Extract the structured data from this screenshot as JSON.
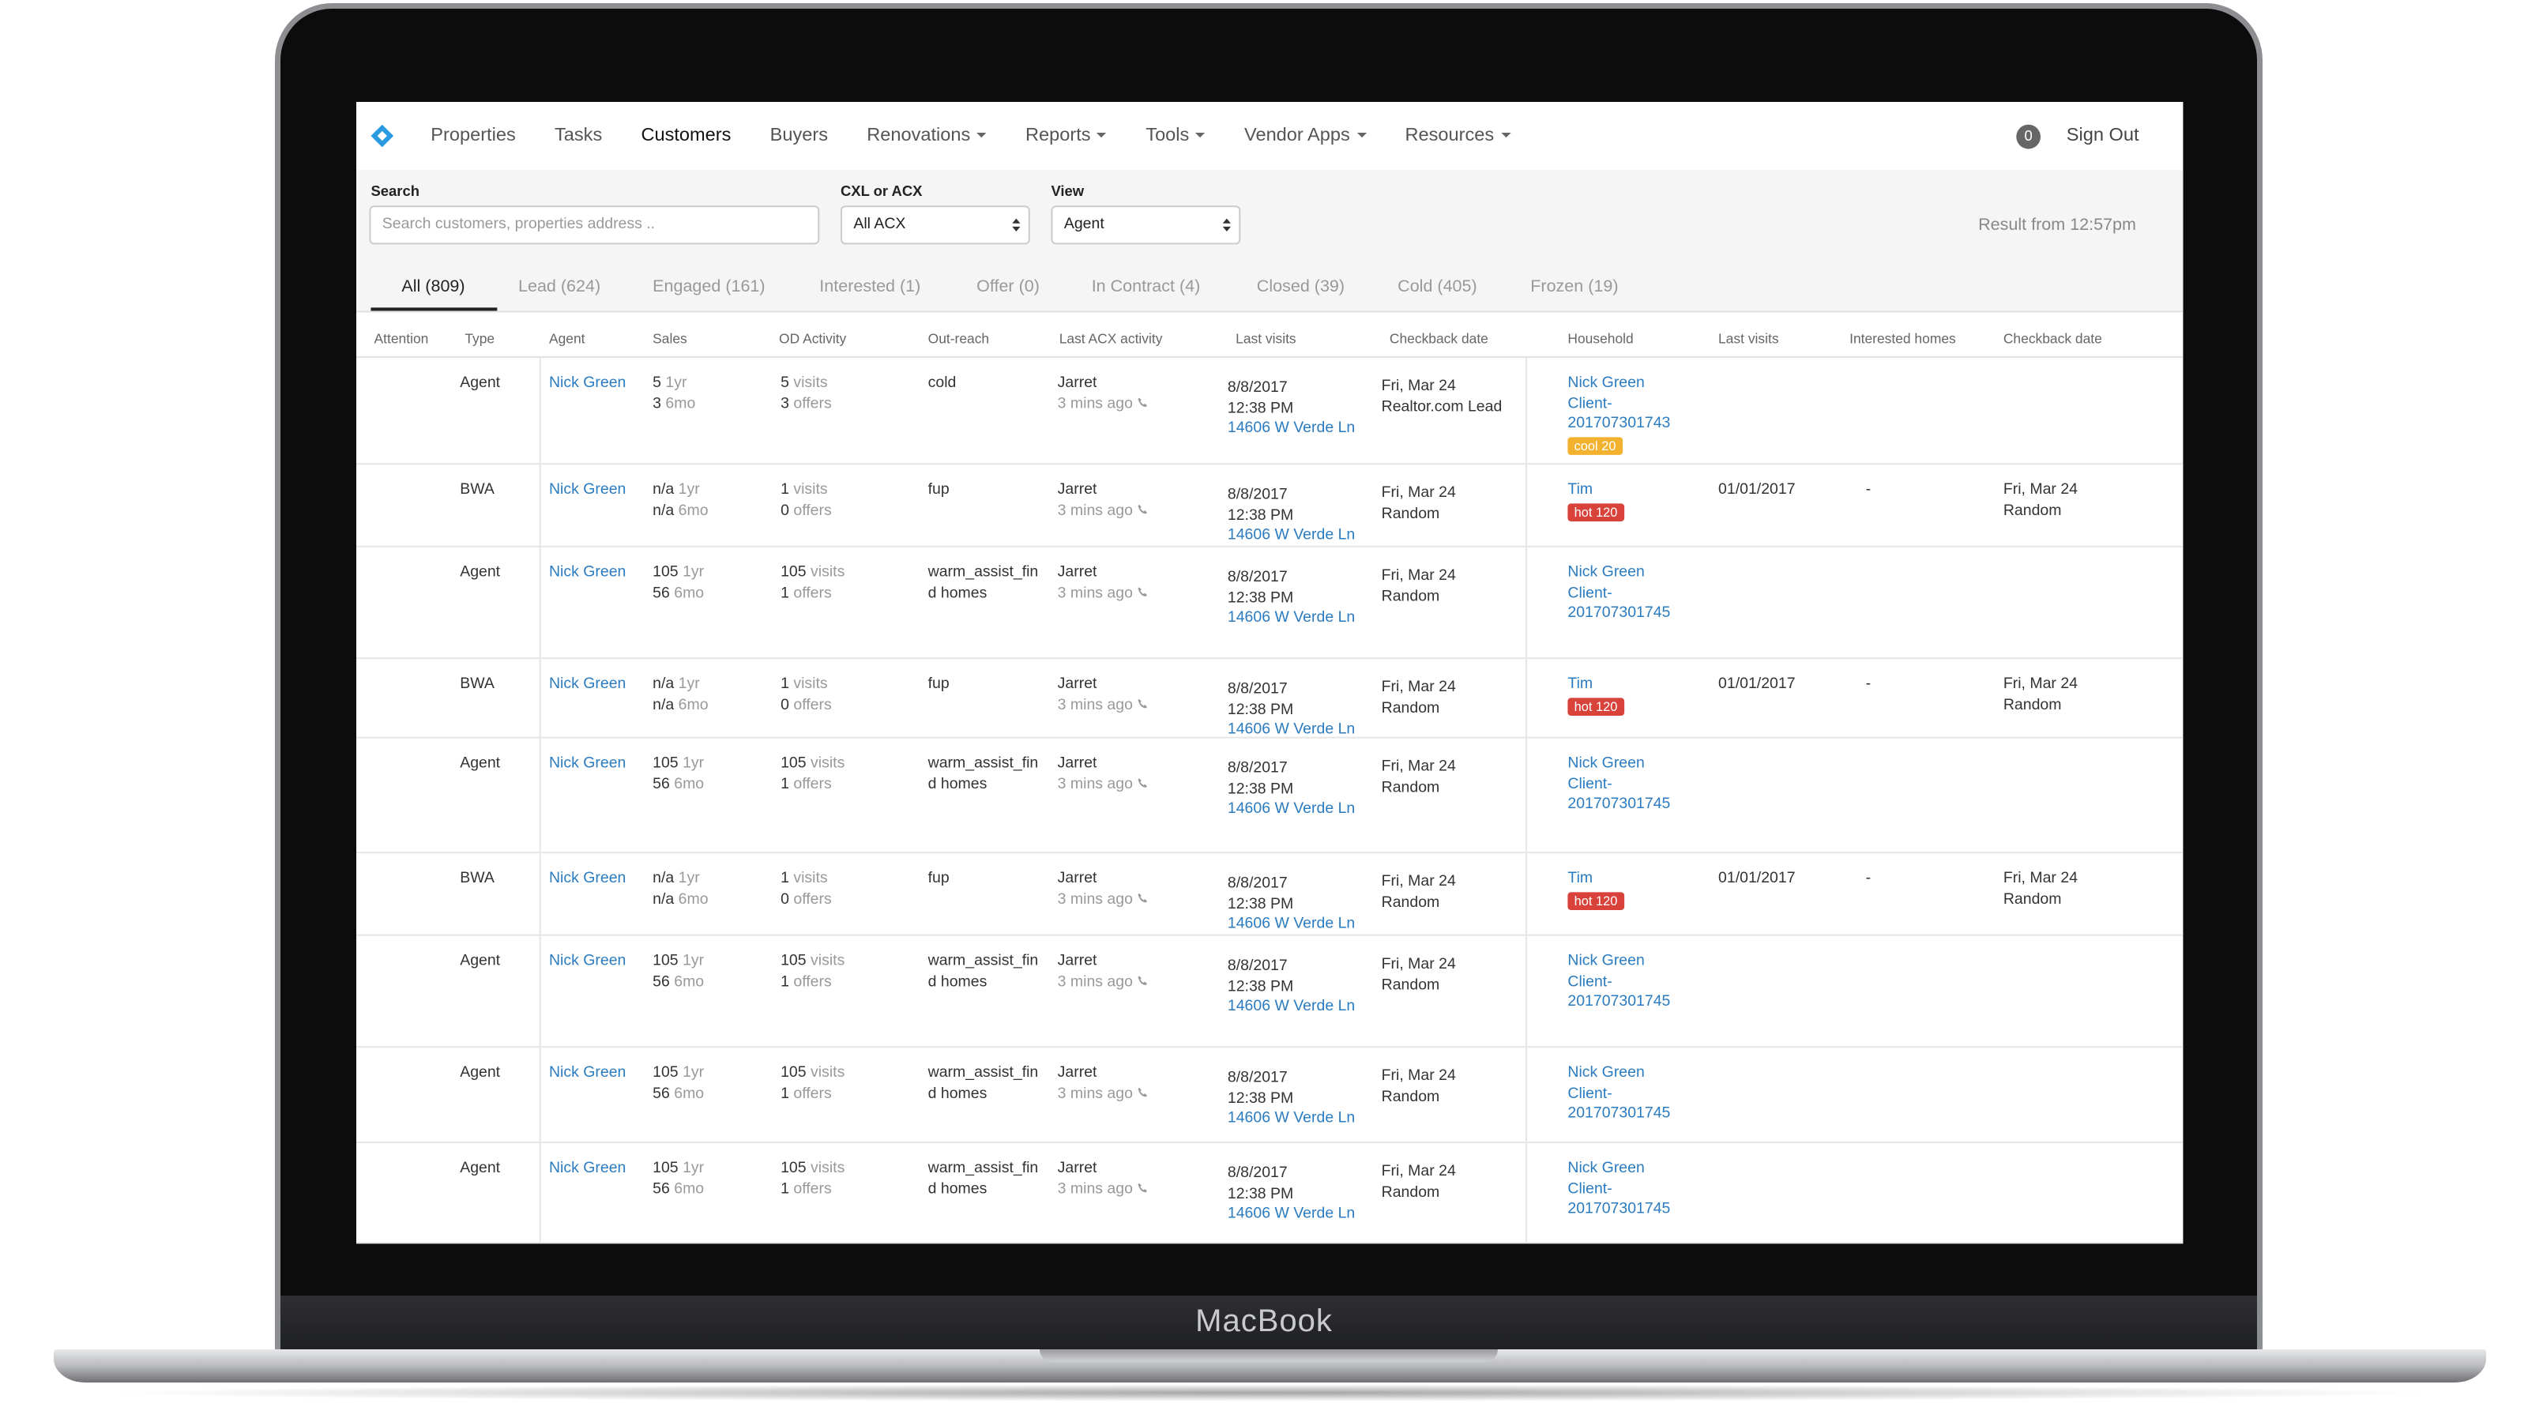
{
  "laptop_label": "MacBook",
  "nav": {
    "items": [
      "Properties",
      "Tasks",
      "Customers",
      "Buyers",
      "Renovations",
      "Reports",
      "Tools",
      "Vendor Apps",
      "Resources"
    ],
    "active": "Customers",
    "dropdowns": [
      "Renovations",
      "Reports",
      "Tools",
      "Vendor Apps",
      "Resources"
    ],
    "badge": "0",
    "sign_out": "Sign Out"
  },
  "filters": {
    "search_label": "Search",
    "search_placeholder": "Search customers, properties address ..",
    "cxl_label": "CXL or ACX",
    "cxl_value": "All ACX",
    "view_label": "View",
    "view_value": "Agent",
    "result": "Result from 12:57pm"
  },
  "tabs": [
    "All (809)",
    "Lead (624)",
    "Engaged (161)",
    "Interested (1)",
    "Offer (0)",
    "In Contract (4)",
    "Closed (39)",
    "Cold (405)",
    "Frozen (19)"
  ],
  "columns": [
    "Attention",
    "Type",
    "Agent",
    "Sales",
    "OD Activity",
    "Out-reach",
    "Last ACX activity",
    "Last visits",
    "Checkback date",
    "Household",
    "Last visits",
    "Interested homes",
    "Checkback date"
  ],
  "rows": [
    {
      "type": "Agent",
      "agent": "Nick Green",
      "sales": [
        [
          "5",
          "1yr"
        ],
        [
          "3",
          "6mo"
        ]
      ],
      "od": [
        [
          "5",
          "visits"
        ],
        [
          "3",
          "offers"
        ]
      ],
      "outreach": "cold",
      "acx": [
        "Jarret",
        "3 mins ago"
      ],
      "visit": [
        "8/8/2017",
        "12:38 PM",
        "14606 W Verde Ln"
      ],
      "checkback": [
        "Fri, Mar 24",
        "Realtor.com Lead"
      ],
      "household": "Nick Green Client-201707301743",
      "badge": "cool 20"
    },
    {
      "type": "BWA",
      "agent": "Nick Green",
      "sales": [
        [
          "n/a",
          "1yr"
        ],
        [
          "n/a",
          "6mo"
        ]
      ],
      "od": [
        [
          "1",
          "visits"
        ],
        [
          "0",
          "offers"
        ]
      ],
      "outreach": "fup",
      "acx": [
        "Jarret",
        "3 mins ago"
      ],
      "visit": [
        "8/8/2017",
        "12:38 PM",
        "14606 W Verde Ln"
      ],
      "checkback": [
        "Fri, Mar 24",
        "Random"
      ],
      "household": "Tim",
      "badge": "hot 120",
      "last_visits": "01/01/2017",
      "interested": "-",
      "checkback2": [
        "Fri, Mar 24",
        "Random"
      ]
    },
    {
      "type": "Agent",
      "agent": "Nick Green",
      "sales": [
        [
          "105",
          "1yr"
        ],
        [
          "56",
          "6mo"
        ]
      ],
      "od": [
        [
          "105",
          "visits"
        ],
        [
          "1",
          "offers"
        ]
      ],
      "outreach": "warm_assist_find homes",
      "acx": [
        "Jarret",
        "3 mins ago"
      ],
      "visit": [
        "8/8/2017",
        "12:38 PM",
        "14606 W Verde Ln"
      ],
      "checkback": [
        "Fri, Mar 24",
        "Random"
      ],
      "household": "Nick Green Client-201707301745"
    },
    {
      "type": "BWA",
      "agent": "Nick Green",
      "sales": [
        [
          "n/a",
          "1yr"
        ],
        [
          "n/a",
          "6mo"
        ]
      ],
      "od": [
        [
          "1",
          "visits"
        ],
        [
          "0",
          "offers"
        ]
      ],
      "outreach": "fup",
      "acx": [
        "Jarret",
        "3 mins ago"
      ],
      "visit": [
        "8/8/2017",
        "12:38 PM",
        "14606 W Verde Ln"
      ],
      "checkback": [
        "Fri, Mar 24",
        "Random"
      ],
      "household": "Tim",
      "badge": "hot 120",
      "last_visits": "01/01/2017",
      "interested": "-",
      "checkback2": [
        "Fri, Mar 24",
        "Random"
      ]
    },
    {
      "type": "Agent",
      "agent": "Nick Green",
      "sales": [
        [
          "105",
          "1yr"
        ],
        [
          "56",
          "6mo"
        ]
      ],
      "od": [
        [
          "105",
          "visits"
        ],
        [
          "1",
          "offers"
        ]
      ],
      "outreach": "warm_assist_find homes",
      "acx": [
        "Jarret",
        "3 mins ago"
      ],
      "visit": [
        "8/8/2017",
        "12:38 PM",
        "14606 W Verde Ln"
      ],
      "checkback": [
        "Fri, Mar 24",
        "Random"
      ],
      "household": "Nick Green Client-201707301745"
    },
    {
      "type": "BWA",
      "agent": "Nick Green",
      "sales": [
        [
          "n/a",
          "1yr"
        ],
        [
          "n/a",
          "6mo"
        ]
      ],
      "od": [
        [
          "1",
          "visits"
        ],
        [
          "0",
          "offers"
        ]
      ],
      "outreach": "fup",
      "acx": [
        "Jarret",
        "3 mins ago"
      ],
      "visit": [
        "8/8/2017",
        "12:38 PM",
        "14606 W Verde Ln"
      ],
      "checkback": [
        "Fri, Mar 24",
        "Random"
      ],
      "household": "Tim",
      "badge": "hot 120",
      "last_visits": "01/01/2017",
      "interested": "-",
      "checkback2": [
        "Fri, Mar 24",
        "Random"
      ]
    },
    {
      "type": "Agent",
      "agent": "Nick Green",
      "sales": [
        [
          "105",
          "1yr"
        ],
        [
          "56",
          "6mo"
        ]
      ],
      "od": [
        [
          "105",
          "visits"
        ],
        [
          "1",
          "offers"
        ]
      ],
      "outreach": "warm_assist_find homes",
      "acx": [
        "Jarret",
        "3 mins ago"
      ],
      "visit": [
        "8/8/2017",
        "12:38 PM",
        "14606 W Verde Ln"
      ],
      "checkback": [
        "Fri, Mar 24",
        "Random"
      ],
      "household": "Nick Green Client-201707301745"
    },
    {
      "type": "Agent",
      "agent": "Nick Green",
      "sales": [
        [
          "105",
          "1yr"
        ],
        [
          "56",
          "6mo"
        ]
      ],
      "od": [
        [
          "105",
          "visits"
        ],
        [
          "1",
          "offers"
        ]
      ],
      "outreach": "warm_assist_find homes",
      "acx": [
        "Jarret",
        "3 mins ago"
      ],
      "visit": [
        "8/8/2017",
        "12:38 PM",
        "14606 W Verde Ln"
      ],
      "checkback": [
        "Fri, Mar 24",
        "Random"
      ],
      "household": "Nick Green Client-201707301745"
    },
    {
      "type": "Agent",
      "agent": "Nick Green",
      "sales": [
        [
          "105",
          "1yr"
        ],
        [
          "56",
          "6mo"
        ]
      ],
      "od": [
        [
          "105",
          "visits"
        ],
        [
          "1",
          "offers"
        ]
      ],
      "outreach": "warm_assist_find homes",
      "acx": [
        "Jarret",
        "3 mins ago"
      ],
      "visit": [
        "8/8/2017",
        "12:38 PM",
        "14606 W Verde Ln"
      ],
      "checkback": [
        "Fri, Mar 24",
        "Random"
      ],
      "household": "Nick Green Client-201707301745"
    }
  ]
}
